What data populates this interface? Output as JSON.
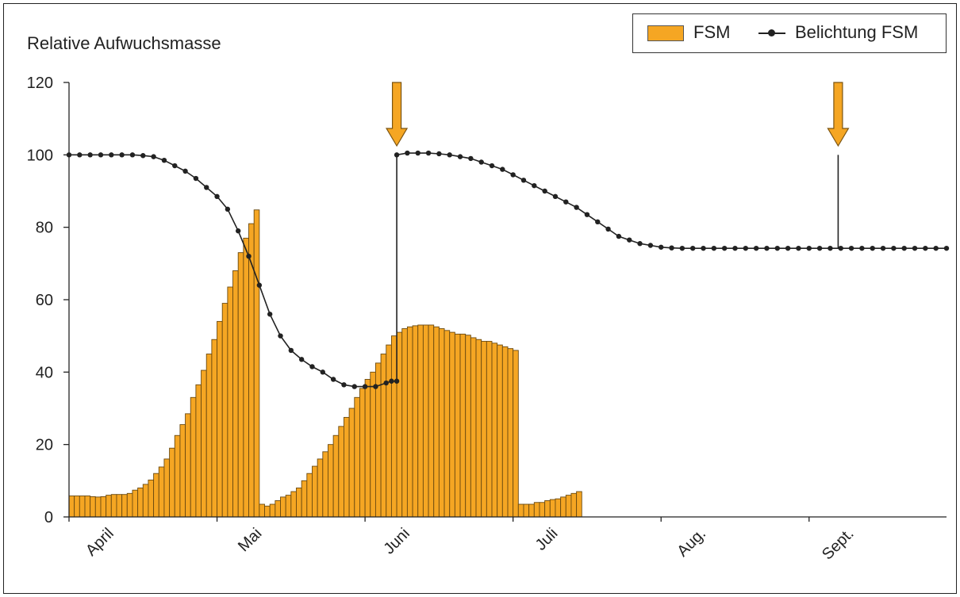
{
  "chart_data": {
    "type": "bar",
    "ylabel": "Relative Aufwuchsmasse",
    "ylim": [
      0,
      120
    ],
    "yticks": [
      0,
      20,
      40,
      60,
      80,
      100,
      120
    ],
    "months": [
      "April",
      "Mai",
      "Juni",
      "Juli",
      "Aug.",
      "Sept."
    ],
    "month_positions": [
      8,
      36,
      64,
      92,
      120,
      148
    ],
    "x_range": [
      0,
      166
    ],
    "colors": {
      "bar": "#f5a623",
      "bar_edge": "#6b4a10",
      "line": "#222222",
      "arrow": "#f5a623"
    },
    "legend_position": "top-right",
    "series": [
      {
        "name": "FSM",
        "type": "bar",
        "values": [
          5.8,
          5.8,
          5.8,
          5.8,
          5.6,
          5.5,
          5.6,
          6.0,
          6.2,
          6.2,
          6.2,
          6.5,
          7.4,
          8.0,
          9.0,
          10.2,
          12.0,
          13.8,
          16.0,
          19.0,
          22.5,
          25.5,
          28.5,
          33.0,
          36.5,
          40.5,
          45.0,
          49.0,
          54.0,
          59.0,
          63.5,
          68.0,
          73.0,
          77.0,
          81.0,
          84.8,
          3.5,
          3.0,
          3.5,
          4.5,
          5.5,
          6.0,
          7.0,
          8.0,
          10.0,
          12.0,
          14.0,
          16.0,
          18.0,
          20.0,
          22.5,
          25.0,
          27.5,
          30.0,
          33.0,
          35.5,
          38.0,
          40.0,
          42.5,
          45.0,
          47.5,
          50.0,
          51.0,
          52.0,
          52.5,
          52.8,
          53.0,
          53.0,
          53.0,
          52.5,
          52.0,
          51.5,
          51.0,
          50.5,
          50.5,
          50.2,
          49.5,
          49.0,
          48.5,
          48.5,
          48.0,
          47.5,
          47.0,
          46.5,
          46.0,
          3.5,
          3.5,
          3.5,
          4.0,
          4.0,
          4.5,
          4.8,
          5.0,
          5.5,
          6.0,
          6.5,
          7.0
        ]
      },
      {
        "name": "Belichtung FSM",
        "type": "line",
        "segments": [
          {
            "x": [
              0,
              2,
              4,
              6,
              8,
              10,
              12,
              14,
              16,
              18,
              20,
              22,
              24,
              26,
              28,
              30,
              32,
              34,
              36,
              38,
              40,
              42,
              44,
              46,
              48,
              50,
              52,
              54,
              56,
              58,
              60,
              61,
              62
            ],
            "y": [
              100,
              100,
              100,
              100,
              100,
              100,
              100,
              99.8,
              99.5,
              98.5,
              97.0,
              95.5,
              93.5,
              91.0,
              88.5,
              85.0,
              79.0,
              72.0,
              64.0,
              56.0,
              50.0,
              46.0,
              43.5,
              41.5,
              40.0,
              38.0,
              36.5,
              36,
              36,
              36,
              37,
              37.5,
              37.5
            ]
          },
          {
            "x": [
              62,
              64,
              66,
              68,
              70,
              72,
              74,
              76,
              78,
              80,
              82,
              84,
              86,
              88,
              90,
              92,
              94,
              96,
              98,
              100,
              102,
              104,
              106,
              108,
              110,
              112,
              114,
              116,
              118,
              120,
              122,
              124,
              126,
              128,
              130,
              132,
              134,
              136,
              138,
              140,
              142,
              144,
              146,
              148,
              150,
              152,
              154,
              156,
              158,
              160,
              162,
              164,
              166
            ],
            "y": [
              100,
              100.5,
              100.5,
              100.5,
              100.3,
              100.0,
              99.5,
              99.0,
              98.0,
              97.0,
              96.0,
              94.5,
              93.0,
              91.5,
              90.0,
              88.5,
              87.0,
              85.5,
              83.5,
              81.5,
              79.5,
              77.5,
              76.5,
              75.5,
              75.0,
              74.5,
              74.3,
              74.2,
              74.2,
              74.2,
              74.2,
              74.2,
              74.2,
              74.2,
              74.2,
              74.2,
              74.2,
              74.2,
              74.2,
              74.2,
              74.2,
              74.2,
              74.2,
              74.2,
              74.2,
              74.2,
              74.2,
              74.2,
              74.2,
              74.2,
              74.2,
              74.2,
              74.2
            ]
          }
        ]
      }
    ],
    "annotations": [
      {
        "type": "arrow-down",
        "x": 62
      },
      {
        "type": "arrow-down",
        "x": 145.5
      }
    ]
  }
}
